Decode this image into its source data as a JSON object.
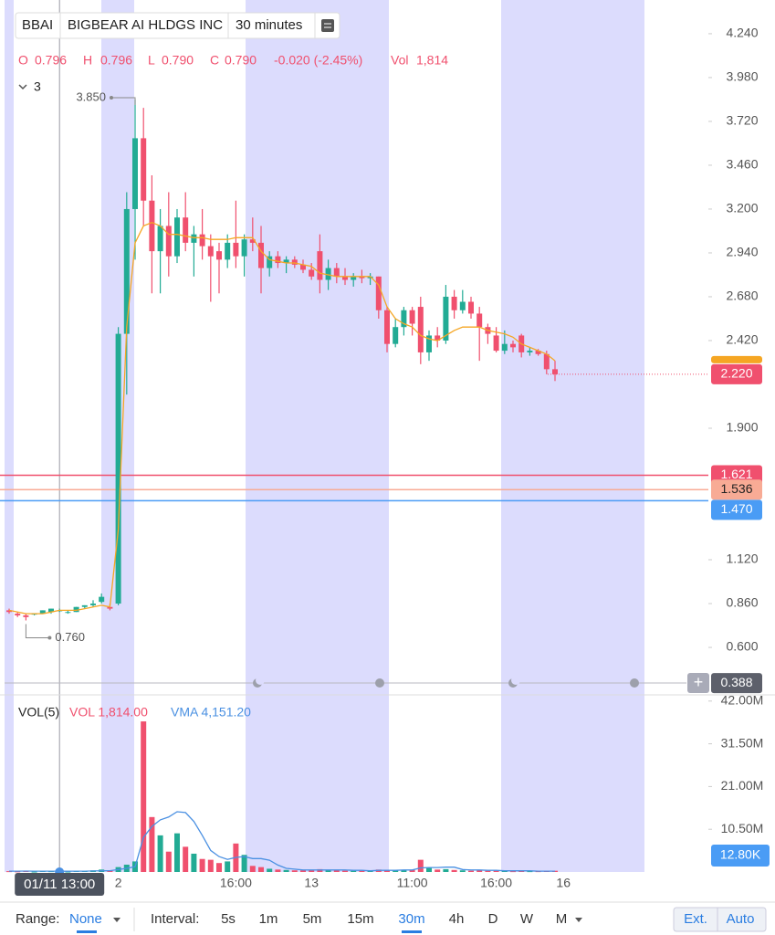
{
  "header": {
    "symbol": "BBAI",
    "name": "BIGBEAR AI HLDGS INC",
    "interval": "30 minutes"
  },
  "quote": {
    "o_label": "O",
    "o": "0.796",
    "h_label": "H",
    "h": "0.796",
    "l_label": "L",
    "l": "0.790",
    "c_label": "C",
    "c": "0.790",
    "change": "-0.020 (-2.45%)",
    "vol_label": "Vol",
    "vol": "1,814"
  },
  "indicator_count": "3",
  "crosshair_label": "01/11 13:00",
  "chart_data": [
    {
      "type": "candlestick",
      "up_color": "#22ab94",
      "down_color": "#f0506e",
      "open": [
        0.82,
        0.8,
        0.79,
        0.8,
        0.8,
        0.81,
        0.82,
        0.81,
        0.81,
        0.84,
        0.85,
        0.87,
        0.84,
        0.86,
        2.46,
        3.2,
        3.62,
        3.25,
        2.95,
        3.1,
        2.92,
        3.15,
        3.0,
        3.05,
        2.98,
        2.95,
        2.9,
        3.0,
        2.92,
        3.02,
        3.0,
        2.85,
        2.92,
        2.88,
        2.9,
        2.87,
        2.84,
        2.95,
        2.78,
        2.85,
        2.8,
        2.78,
        2.8,
        2.79,
        2.8,
        2.6,
        2.4,
        2.5,
        2.6,
        2.62,
        2.35,
        2.45,
        2.42,
        2.68,
        2.6,
        2.65,
        2.58,
        2.5,
        2.45,
        2.36,
        2.4,
        2.45,
        2.35,
        2.36,
        2.34,
        2.25,
        null
      ],
      "high": [
        0.83,
        0.81,
        0.8,
        0.8,
        0.82,
        0.83,
        0.83,
        0.82,
        0.84,
        0.85,
        0.88,
        0.92,
        0.86,
        2.5,
        3.3,
        3.85,
        3.8,
        3.4,
        3.2,
        3.3,
        3.2,
        3.3,
        3.1,
        3.2,
        3.05,
        3.0,
        3.05,
        3.25,
        3.05,
        3.15,
        3.1,
        2.95,
        2.95,
        2.92,
        2.92,
        2.9,
        2.88,
        3.05,
        2.9,
        2.88,
        2.85,
        2.82,
        2.84,
        2.82,
        2.8,
        2.62,
        2.55,
        2.62,
        2.62,
        2.68,
        2.48,
        2.5,
        2.75,
        2.72,
        2.72,
        2.68,
        2.62,
        2.52,
        2.5,
        2.48,
        2.42,
        2.46,
        2.38,
        2.37,
        2.36,
        2.3,
        null
      ],
      "low": [
        0.8,
        0.78,
        0.76,
        0.79,
        0.8,
        0.8,
        0.81,
        0.8,
        0.81,
        0.83,
        0.84,
        0.86,
        0.82,
        0.85,
        2.1,
        2.9,
        3.1,
        2.7,
        2.7,
        2.8,
        2.88,
        2.95,
        2.8,
        2.9,
        2.65,
        2.7,
        2.85,
        2.85,
        2.8,
        2.95,
        2.7,
        2.8,
        2.85,
        2.82,
        2.85,
        2.82,
        2.78,
        2.7,
        2.72,
        2.76,
        2.75,
        2.74,
        2.76,
        2.75,
        2.55,
        2.35,
        2.38,
        2.45,
        2.45,
        2.28,
        2.3,
        2.38,
        2.4,
        2.55,
        2.58,
        2.55,
        2.3,
        2.4,
        2.35,
        2.34,
        2.35,
        2.32,
        2.33,
        2.33,
        2.22,
        2.18,
        null
      ],
      "close": [
        0.81,
        0.79,
        0.78,
        0.8,
        0.82,
        0.83,
        0.82,
        0.81,
        0.84,
        0.85,
        0.86,
        0.9,
        0.83,
        2.46,
        3.2,
        3.62,
        3.25,
        2.95,
        3.1,
        2.92,
        3.15,
        3.0,
        3.05,
        2.98,
        2.92,
        2.9,
        3.0,
        2.92,
        3.02,
        3.0,
        2.85,
        2.92,
        2.88,
        2.9,
        2.87,
        2.84,
        2.8,
        2.78,
        2.85,
        2.8,
        2.78,
        2.8,
        2.79,
        2.8,
        2.6,
        2.4,
        2.5,
        2.6,
        2.52,
        2.35,
        2.45,
        2.42,
        2.68,
        2.6,
        2.65,
        2.58,
        2.5,
        2.46,
        2.36,
        2.4,
        2.38,
        2.35,
        2.36,
        2.34,
        2.25,
        2.22,
        null
      ],
      "ma": {
        "color": "#f5a623",
        "values": [
          0.82,
          0.81,
          0.8,
          0.8,
          0.8,
          0.81,
          0.82,
          0.82,
          0.82,
          0.83,
          0.84,
          0.85,
          0.84,
          1.3,
          2.5,
          3.0,
          3.1,
          3.12,
          3.1,
          3.05,
          3.05,
          3.04,
          3.03,
          3.03,
          3.02,
          3.02,
          3.02,
          3.03,
          3.03,
          3.03,
          2.95,
          2.9,
          2.89,
          2.88,
          2.88,
          2.87,
          2.86,
          2.82,
          2.81,
          2.8,
          2.8,
          2.8,
          2.8,
          2.8,
          2.75,
          2.62,
          2.55,
          2.52,
          2.5,
          2.45,
          2.43,
          2.42,
          2.45,
          2.48,
          2.5,
          2.5,
          2.5,
          2.48,
          2.47,
          2.46,
          2.44,
          2.4,
          2.38,
          2.36,
          2.34,
          2.3,
          null
        ]
      },
      "ylim": [
        0.324,
        4.44
      ],
      "yticks": [
        {
          "value": 4.24,
          "label": "4.240"
        },
        {
          "value": 3.98,
          "label": "3.980"
        },
        {
          "value": 3.72,
          "label": "3.720"
        },
        {
          "value": 3.46,
          "label": "3.460"
        },
        {
          "value": 3.2,
          "label": "3.200"
        },
        {
          "value": 2.94,
          "label": "2.940"
        },
        {
          "value": 2.68,
          "label": "2.680"
        },
        {
          "value": 2.42,
          "label": "2.420"
        },
        {
          "value": 1.9,
          "label": "1.900"
        },
        {
          "value": 1.12,
          "label": "1.120"
        },
        {
          "value": 0.86,
          "label": "0.860"
        },
        {
          "value": 0.6,
          "label": "0.600"
        }
      ],
      "high_annotation": {
        "value": 3.85,
        "label": "3.850"
      },
      "low_annotation": {
        "value": 0.76,
        "label": "0.760"
      },
      "price_lines": [
        {
          "value": 1.621,
          "label": "1.621",
          "color": "#f0506e"
        },
        {
          "value": 1.47,
          "label": "1.470",
          "color": "#4a9cf5"
        },
        {
          "value": 1.536,
          "label": "1.536",
          "color": "#f8ab95"
        }
      ],
      "last_price": {
        "value": 2.22,
        "label": "2.220",
        "color": "#f0506e"
      },
      "range_low": {
        "value": 0.388,
        "label": "0.388"
      }
    },
    {
      "type": "bar",
      "title": "VOL(5)",
      "vol_legend": "VOL 1,814.00",
      "vma_legend": "VMA 4,151.20",
      "categories": [
        null,
        null,
        null,
        null,
        null,
        null,
        null,
        null,
        null,
        null,
        null,
        null,
        null,
        "2",
        null,
        null,
        null,
        null,
        null,
        null,
        null,
        null,
        null,
        null,
        null,
        null,
        null,
        "16:00",
        null,
        null,
        null,
        null,
        null,
        null,
        null,
        null,
        "13",
        null,
        null,
        null,
        null,
        null,
        null,
        null,
        null,
        null,
        null,
        null,
        "11:00",
        null,
        null,
        null,
        null,
        null,
        null,
        null,
        null,
        null,
        "16:00",
        null,
        null,
        null,
        null,
        null,
        null,
        null,
        "16"
      ],
      "values": [
        200000,
        150000,
        300000,
        100000,
        250000,
        200000,
        150000,
        100000,
        300000,
        250000,
        400000,
        600000,
        300000,
        1200000,
        1800000,
        2600000,
        37000000,
        13500000,
        9000000,
        5000000,
        9500000,
        6200000,
        4500000,
        3200000,
        3000000,
        2200000,
        2600000,
        7000000,
        4200000,
        1500000,
        1200000,
        800000,
        600000,
        500000,
        400000,
        400000,
        500000,
        700000,
        500000,
        400000,
        300000,
        300000,
        300000,
        300000,
        600000,
        500000,
        400000,
        400000,
        500000,
        3000000,
        1000000,
        600000,
        700000,
        500000,
        400000,
        300000,
        500000,
        300000,
        300000,
        300000,
        200000,
        300000,
        200000,
        200000,
        300000,
        300000,
        null
      ],
      "vma": {
        "color": "#4a90e2",
        "values": [
          200000,
          200000,
          220000,
          200000,
          200000,
          200000,
          190000,
          180000,
          200000,
          210000,
          240000,
          300000,
          320000,
          600000,
          900000,
          1300000,
          8500000,
          11200000,
          12800000,
          13500000,
          14800000,
          14600000,
          12400000,
          9000000,
          5300000,
          3800000,
          3100000,
          3600000,
          3800000,
          3300000,
          3300000,
          2900000,
          1700000,
          900000,
          700000,
          500000,
          500000,
          500000,
          500000,
          500000,
          500000,
          400000,
          400000,
          300000,
          400000,
          400000,
          400000,
          500000,
          500000,
          1000000,
          1100000,
          1100000,
          1200000,
          1200000,
          600000,
          500000,
          500000,
          400000,
          400000,
          300000,
          300000,
          300000,
          300000,
          200000,
          200000,
          200000,
          null
        ]
      },
      "ylim": [
        0,
        43300000
      ],
      "yticks": [
        {
          "value": 42000000,
          "label": "42.00M"
        },
        {
          "value": 31500000,
          "label": "31.50M"
        },
        {
          "value": 21000000,
          "label": "21.00M"
        },
        {
          "value": 10500000,
          "label": "10.50M"
        }
      ],
      "current": {
        "value": 12800,
        "label": "12.80K"
      }
    }
  ],
  "toolbar": {
    "range_label": "Range:",
    "range_value": "None",
    "interval_label": "Interval:",
    "intervals": [
      "5s",
      "1m",
      "5m",
      "15m",
      "30m",
      "4h",
      "D",
      "W",
      "M"
    ],
    "buttons": [
      "Ext.",
      "Auto"
    ]
  }
}
